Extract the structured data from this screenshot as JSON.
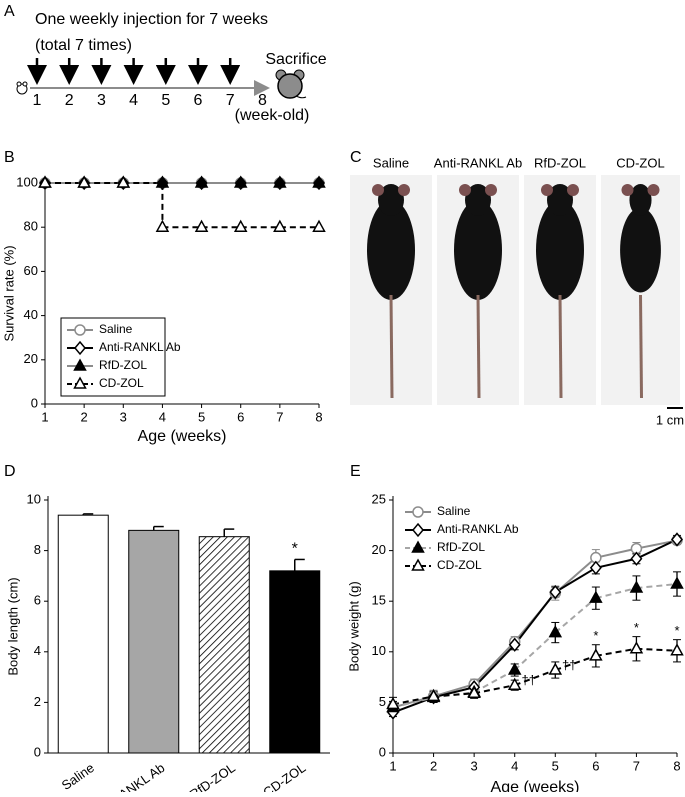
{
  "timeline": {
    "panel": "A",
    "title": "One weekly injection for 7 weeks",
    "subtitle": "(total 7 times)",
    "weeks": [
      1,
      2,
      3,
      4,
      5,
      6,
      7,
      8
    ],
    "end_label": "Sacrifice",
    "unit_label": "(week-old)"
  },
  "photos": {
    "panel": "C",
    "labels": [
      "Saline",
      "Anti-RANKL Ab",
      "RfD-ZOL",
      "CD-ZOL"
    ],
    "scale_bar": "1 cm"
  },
  "chart_data": [
    {
      "type": "line",
      "panel": "B",
      "x_label": "Age (weeks)",
      "y_label": "Survival rate (%)",
      "x": [
        1,
        2,
        3,
        4,
        5,
        6,
        7,
        8
      ],
      "xlim": [
        1,
        8
      ],
      "xticks": [
        1,
        2,
        3,
        4,
        5,
        6,
        7,
        8
      ],
      "ylim": [
        0,
        100
      ],
      "yticks": [
        0,
        20,
        40,
        60,
        80,
        100
      ],
      "legend": "lower left",
      "legend_frame": true,
      "series": [
        {
          "name": "Saline",
          "color": "#8c8c8c",
          "marker": "circle",
          "marker_color": "#8c8c8c",
          "marker_face": "#ffffff",
          "dash": false,
          "values": [
            100,
            100,
            100,
            100,
            100,
            100,
            100,
            100
          ]
        },
        {
          "name": "Anti-RANKL  Ab",
          "color": "#000000",
          "marker": "diamond",
          "marker_color": "#000000",
          "marker_face": "#ffffff",
          "dash": false,
          "values": [
            100,
            100,
            100,
            100,
            100,
            100,
            100,
            100
          ]
        },
        {
          "name": "RfD-ZOL",
          "color": "#8c8c8c",
          "marker": "triangle",
          "marker_color": "#000000",
          "marker_face": "#000000",
          "dash": false,
          "values": [
            100,
            100,
            100,
            100,
            100,
            100,
            100,
            100
          ]
        },
        {
          "name": "CD-ZOL",
          "color": "#000000",
          "marker": "triangle",
          "marker_color": "#000000",
          "marker_face": "#ffffff",
          "dash": true,
          "step": true,
          "values": [
            100,
            100,
            100,
            80,
            80,
            80,
            80,
            80
          ]
        }
      ]
    },
    {
      "type": "bar",
      "panel": "D",
      "y_label": "Body length (cm)",
      "categories": [
        "Saline",
        "Anti-RANKL Ab",
        "RfD-ZOL",
        "CD-ZOL"
      ],
      "values": [
        9.4,
        8.8,
        8.55,
        7.2
      ],
      "errors": [
        0.05,
        0.15,
        0.3,
        0.45
      ],
      "fills": [
        "#ffffff",
        "#a6a6a6",
        "hatch",
        "#000000"
      ],
      "significance": [
        null,
        null,
        null,
        "*"
      ],
      "ylim": [
        0,
        10
      ],
      "yticks": [
        0,
        2,
        4,
        6,
        8,
        10
      ]
    },
    {
      "type": "line",
      "panel": "E",
      "x_label": "Age (weeks)",
      "y_label": "Body weight (g)",
      "x": [
        1,
        2,
        3,
        4,
        5,
        6,
        7,
        8
      ],
      "xlim": [
        1,
        8
      ],
      "xticks": [
        1,
        2,
        3,
        4,
        5,
        6,
        7,
        8
      ],
      "ylim": [
        0,
        25
      ],
      "yticks": [
        0,
        5,
        10,
        15,
        20,
        25
      ],
      "legend": "upper left",
      "legend_frame": false,
      "series": [
        {
          "name": "Saline",
          "color": "#8c8c8c",
          "marker": "circle",
          "marker_color": "#8c8c8c",
          "marker_face": "#ffffff",
          "dash": false,
          "values": [
            4.5,
            5.6,
            6.8,
            11,
            15.8,
            19.3,
            20.2,
            21
          ],
          "errors": [
            0.5,
            0.6,
            0.5,
            0.5,
            0.7,
            0.8,
            0.6,
            0.4
          ]
        },
        {
          "name": "Anti-RANKL  Ab",
          "color": "#000000",
          "marker": "diamond",
          "marker_color": "#000000",
          "marker_face": "#ffffff",
          "dash": false,
          "values": [
            4,
            5.5,
            6.5,
            10.7,
            15.9,
            18.3,
            19.2,
            21.1
          ],
          "errors": [
            0.4,
            0.5,
            0.5,
            0.5,
            0.5,
            0.6,
            0.5,
            0.4
          ]
        },
        {
          "name": "RfD-ZOL",
          "color": "#a6a6a6",
          "marker": "triangle",
          "marker_color": "#000000",
          "marker_face": "#000000",
          "dash": true,
          "values": [
            4.5,
            5.5,
            6,
            8.2,
            11.9,
            15.3,
            16.3,
            16.7
          ],
          "errors": [
            0.6,
            0.5,
            0.5,
            0.6,
            1,
            1.1,
            1.2,
            1.2
          ]
        },
        {
          "name": "CD-ZOL",
          "color": "#000000",
          "marker": "triangle",
          "marker_color": "#000000",
          "marker_face": "#ffffff",
          "dash": true,
          "values": [
            4.8,
            5.6,
            5.9,
            6.7,
            8.2,
            9.6,
            10.3,
            10.1
          ],
          "errors": [
            0.7,
            0.5,
            0.5,
            0.5,
            0.8,
            1.1,
            1.2,
            1.1
          ],
          "annotations": [
            null,
            null,
            null,
            "††",
            "††",
            "*",
            "*",
            "*"
          ]
        }
      ]
    }
  ]
}
